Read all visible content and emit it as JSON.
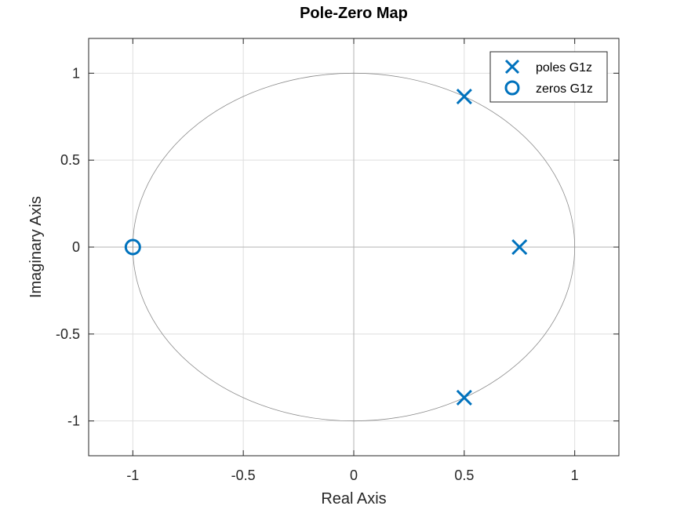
{
  "chart_data": {
    "type": "scatter",
    "title": "Pole-Zero Map",
    "xlabel": "Real Axis",
    "ylabel": "Imaginary Axis",
    "xlim": [
      -1.2,
      1.2
    ],
    "ylim": [
      -1.2,
      1.2
    ],
    "xticks": [
      -1,
      -0.5,
      0,
      0.5,
      1
    ],
    "yticks": [
      -1,
      -0.5,
      0,
      0.5,
      1
    ],
    "xtick_labels": [
      "-1",
      "-0.5",
      "0",
      "0.5",
      "1"
    ],
    "ytick_labels": [
      "-1",
      "-0.5",
      "0",
      "0.5",
      "1"
    ],
    "grid": true,
    "unit_circle": true,
    "legend_position": "top-right",
    "series": [
      {
        "name": "poles G1z",
        "marker": "x",
        "color": "#0072BD",
        "points": [
          {
            "x": 0.5,
            "y": 0.866
          },
          {
            "x": 0.75,
            "y": 0
          },
          {
            "x": 0.5,
            "y": -0.866
          }
        ]
      },
      {
        "name": "zeros G1z",
        "marker": "o",
        "color": "#0072BD",
        "points": [
          {
            "x": -1,
            "y": 0
          }
        ]
      }
    ]
  }
}
